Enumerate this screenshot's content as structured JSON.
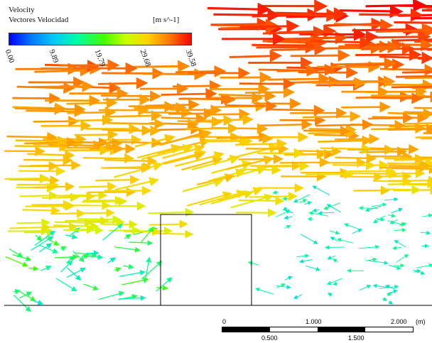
{
  "legend": {
    "title": "Velocity",
    "subtitle": "Vectores Velocidad",
    "unit": "[m s^-1]",
    "ticks": [
      "0.00",
      "9.89",
      "19.79",
      "29.68",
      "39.58"
    ],
    "colors": [
      "#0000ff",
      "#00c8ff",
      "#40ff00",
      "#ffd200",
      "#ff0000"
    ]
  },
  "scale_bar": {
    "top_labels": [
      "0",
      "1.000",
      "2.000"
    ],
    "bottom_labels": [
      "0.500",
      "1.500"
    ],
    "unit": "(m)"
  },
  "colors": {
    "obstacle_outline": "#000000",
    "ground_line": "#000000",
    "background": "#ffffff"
  }
}
